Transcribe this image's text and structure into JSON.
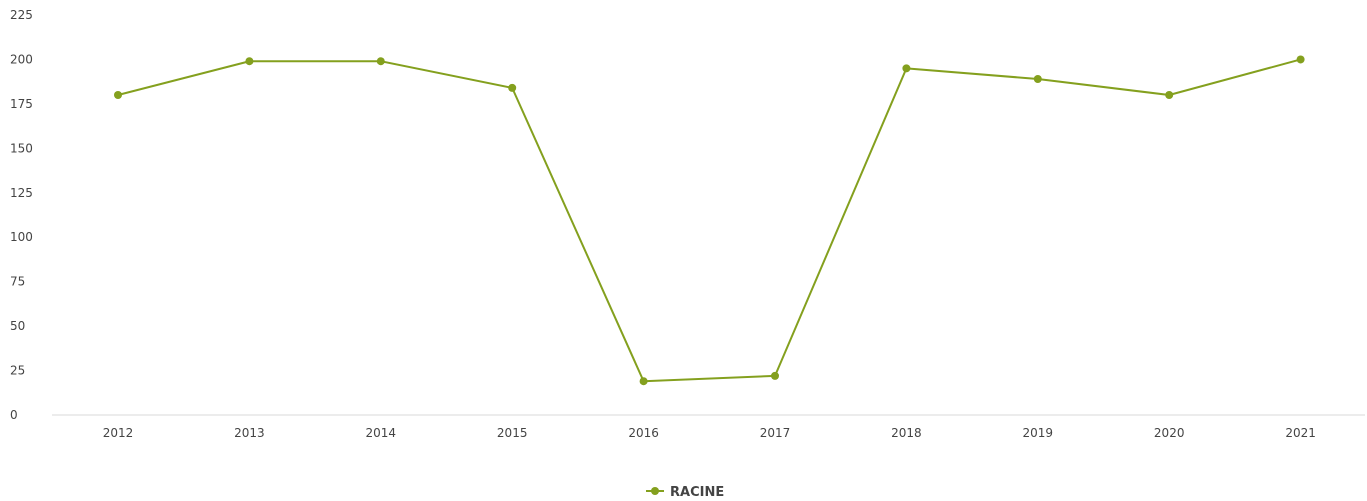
{
  "chart_data": {
    "type": "line",
    "categories": [
      "2012",
      "2013",
      "2014",
      "2015",
      "2016",
      "2017",
      "2018",
      "2019",
      "2020",
      "2021"
    ],
    "series": [
      {
        "name": "RACINE",
        "color": "#84A01E",
        "values": [
          180,
          199,
          199,
          184,
          19,
          22,
          195,
          189,
          180,
          200
        ]
      }
    ],
    "yticks": [
      "0",
      "25",
      "50",
      "75",
      "100",
      "125",
      "150",
      "175",
      "200",
      "225"
    ],
    "ylim": [
      0,
      225
    ],
    "grid": false,
    "legend_position": "bottom-center",
    "title": "",
    "xlabel": "",
    "ylabel": ""
  }
}
